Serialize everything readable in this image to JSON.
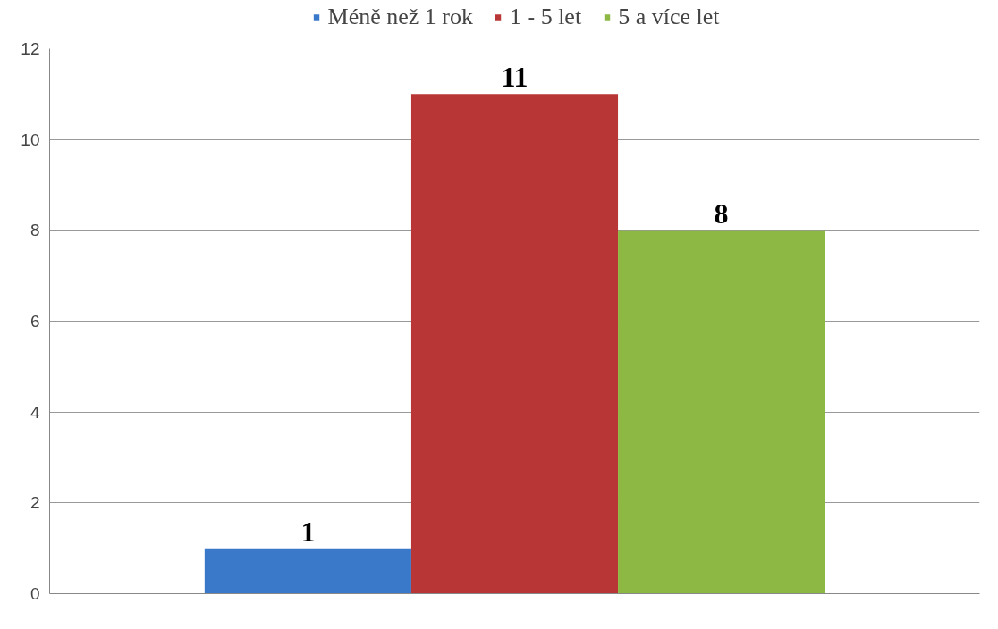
{
  "chart_data": {
    "type": "bar",
    "categories": [
      null
    ],
    "series": [
      {
        "name": "Méně než 1 rok",
        "color": "#3a78c9",
        "values": [
          1
        ]
      },
      {
        "name": "1 - 5 let",
        "color": "#b93636",
        "values": [
          11
        ]
      },
      {
        "name": "5 a více let",
        "color": "#8db843",
        "values": [
          8
        ]
      }
    ],
    "ylim": [
      0,
      12
    ],
    "yticks": [
      0,
      2,
      4,
      6,
      8,
      10,
      12
    ],
    "grid": "y",
    "legend": "top",
    "data_labels": true
  }
}
